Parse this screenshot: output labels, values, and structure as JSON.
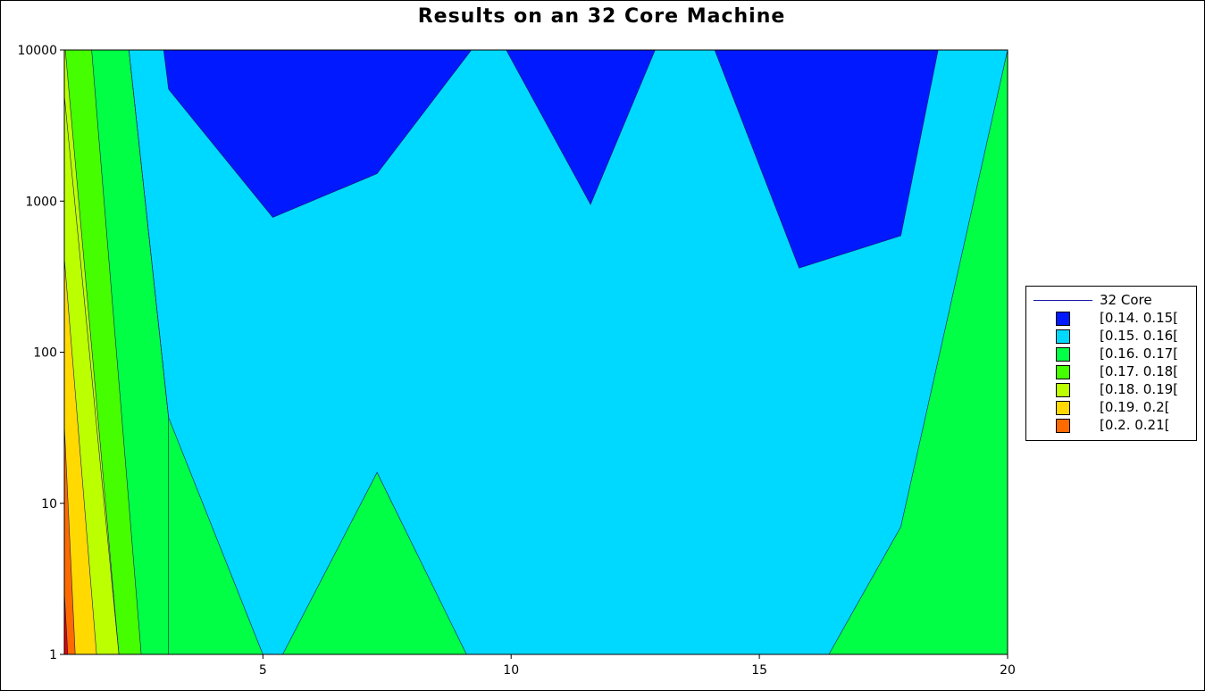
{
  "chart_data": {
    "type": "contour",
    "title": "Results on an 32 Core Machine",
    "xlabel": "",
    "ylabel": "",
    "xlim": [
      1,
      20
    ],
    "ylim": [
      1,
      10000
    ],
    "y_scale": "log",
    "x_ticks": [
      5,
      10,
      15,
      20
    ],
    "y_ticks": [
      1,
      10,
      100,
      1000,
      10000
    ],
    "x_tick_labels": [
      "5",
      "10",
      "15",
      "20"
    ],
    "y_tick_labels": [
      "1",
      "10",
      "100",
      "1000",
      "10000"
    ],
    "legend_position": "right",
    "legend_line_label": "32 Core",
    "levels": [
      {
        "label": "[0.14. 0.15[",
        "color": "#0019ff"
      },
      {
        "label": "[0.15. 0.16[",
        "color": "#00d9ff"
      },
      {
        "label": "[0.16. 0.17[",
        "color": "#00ff45"
      },
      {
        "label": "[0.17. 0.18[",
        "color": "#45ff00"
      },
      {
        "label": "[0.18. 0.19[",
        "color": "#bbff00"
      },
      {
        "label": "[0.19. 0.2[",
        "color": "#ffd900"
      },
      {
        "label": "[0.2. 0.21[",
        "color": "#ff6a00"
      }
    ],
    "extra_level_color": "#e80000",
    "regions": [
      {
        "color": "#00d9ff",
        "points": [
          [
            1,
            1
          ],
          [
            20,
            1
          ],
          [
            20,
            10000
          ],
          [
            1,
            10000
          ]
        ]
      },
      {
        "color": "#0019ff",
        "points": [
          [
            3.0,
            10000
          ],
          [
            3.1,
            5500
          ],
          [
            5.2,
            780
          ],
          [
            7.3,
            1520
          ],
          [
            9.2,
            10000
          ]
        ]
      },
      {
        "color": "#0019ff",
        "points": [
          [
            9.9,
            10000
          ],
          [
            11.6,
            950
          ],
          [
            12.9,
            10000
          ]
        ]
      },
      {
        "color": "#0019ff",
        "points": [
          [
            14.1,
            10000
          ],
          [
            15.8,
            360
          ],
          [
            17.85,
            590
          ],
          [
            18.6,
            10000
          ]
        ]
      },
      {
        "color": "#00ff45",
        "points": [
          [
            1,
            1
          ],
          [
            5.0,
            1
          ],
          [
            3.1,
            37
          ],
          [
            2.3,
            10000
          ],
          [
            1,
            10000
          ]
        ]
      },
      {
        "color": "#00ff45",
        "points": [
          [
            5.4,
            1
          ],
          [
            7.3,
            16
          ],
          [
            9.1,
            1
          ]
        ]
      },
      {
        "color": "#00ff45",
        "points": [
          [
            16.4,
            1
          ],
          [
            17.85,
            7
          ],
          [
            20,
            10000
          ],
          [
            20,
            1
          ]
        ]
      },
      {
        "color": "#45ff00",
        "points": [
          [
            1,
            1
          ],
          [
            2.55,
            1
          ],
          [
            1.55,
            10000
          ],
          [
            1,
            10000
          ]
        ]
      },
      {
        "color": "#bbff00",
        "points": [
          [
            1,
            1
          ],
          [
            2.1,
            1
          ],
          [
            1.02,
            10000
          ],
          [
            1,
            10000
          ],
          [
            1,
            5000
          ]
        ]
      },
      {
        "color": "#bbff00",
        "points": [
          [
            1,
            1
          ],
          [
            2.1,
            1
          ],
          [
            1,
            5000
          ]
        ]
      },
      {
        "color": "#ffd900",
        "points": [
          [
            1,
            1
          ],
          [
            1.65,
            1
          ],
          [
            1,
            420
          ]
        ]
      },
      {
        "color": "#ff6a00",
        "points": [
          [
            1,
            1
          ],
          [
            1.22,
            1
          ],
          [
            1,
            33
          ]
        ]
      },
      {
        "color": "#e80000",
        "points": [
          [
            1,
            1
          ],
          [
            1.07,
            1
          ],
          [
            1,
            2.6
          ]
        ]
      }
    ],
    "contour_lines": [
      [
        [
          3.1,
          1
        ],
        [
          3.1,
          37
        ],
        [
          2.3,
          10000
        ]
      ]
    ]
  }
}
